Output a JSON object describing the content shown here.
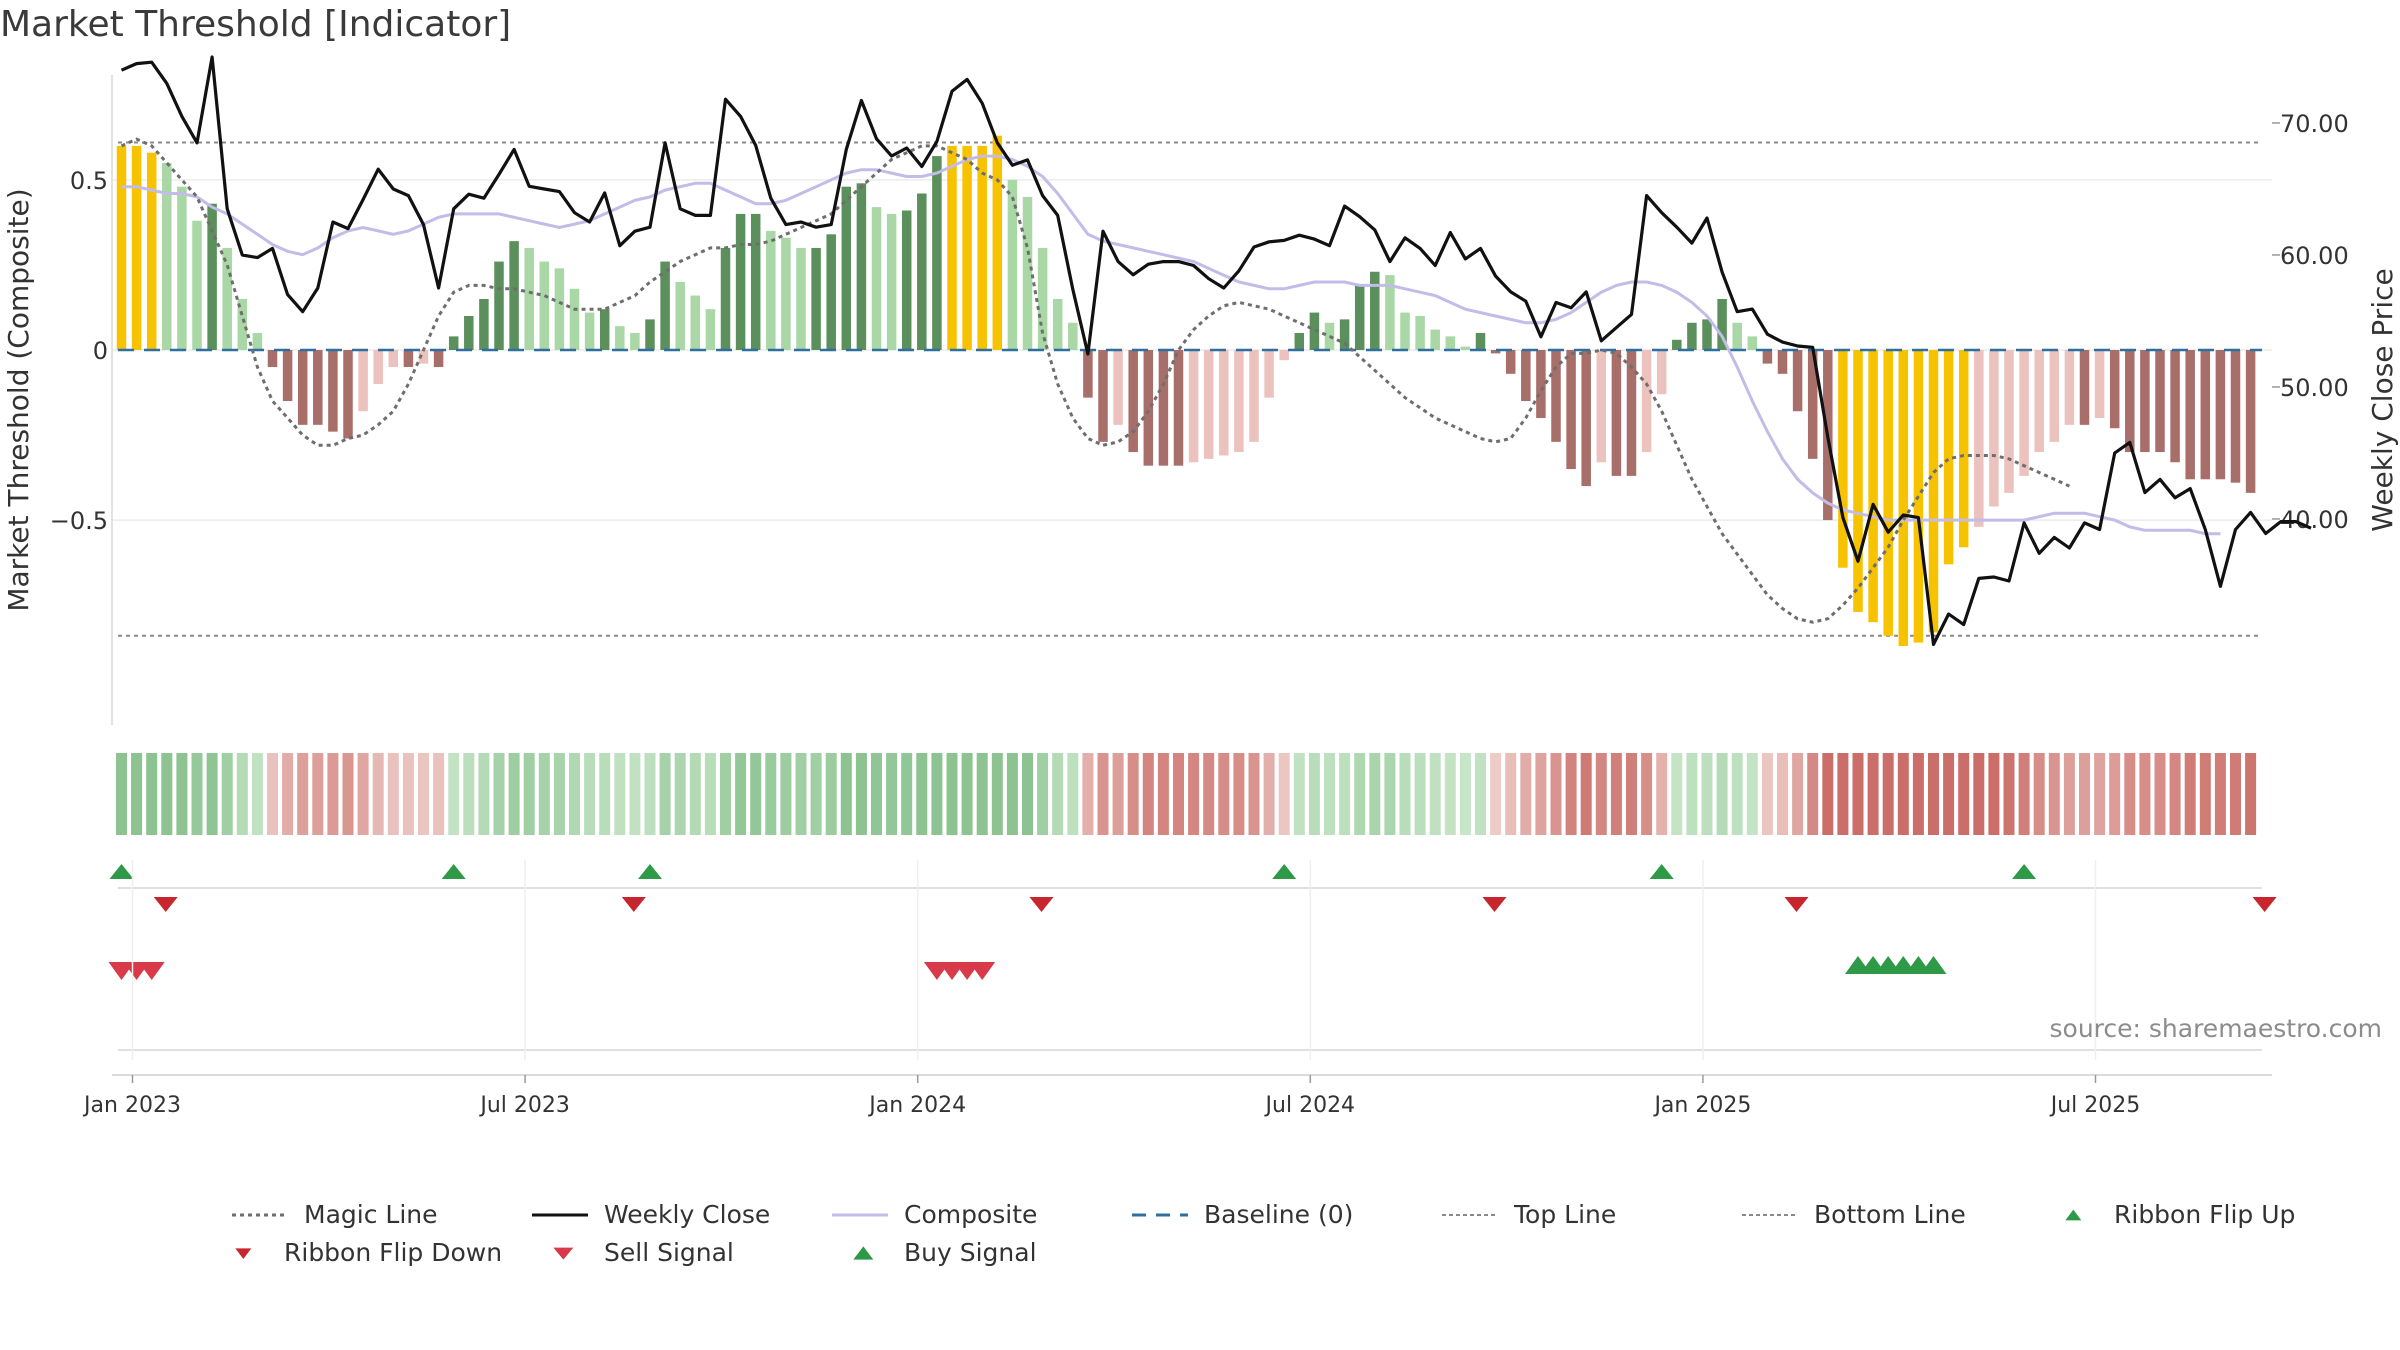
{
  "title": "Market Threshold [Indicator]",
  "source": "source: sharemaestro.com",
  "colors": {
    "gold": "#f7c200",
    "greenDark": "#5b8f5b",
    "greenLight": "#a9d7a5",
    "redDark": "#a86f6a",
    "redLight": "#ebc2bd",
    "weekly": "#111111",
    "composite": "#c3bbe8",
    "magic": "#6e6e6e",
    "baseline": "#2f6fa0",
    "buy": "#2e9a48",
    "sell": "#d83a4a",
    "flipDown": "#c8262e"
  },
  "chart_data": {
    "type": "bar+line",
    "ylabel_left": "Market Threshold (Composite)",
    "ylabel_right": "Weekly Close Price",
    "xlabels": [
      "Jan 2023",
      "Jul 2023",
      "Jan 2024",
      "Jul 2024",
      "Jan 2025",
      "Jul 2025"
    ],
    "xlabel_weeks": [
      0,
      26,
      52,
      78,
      104,
      130
    ],
    "ylim_left": [
      -0.97,
      0.97
    ],
    "yticks_left": [
      0.5,
      0,
      -0.5
    ],
    "yticklabels_left": [
      "0.5",
      "0",
      "−0.5"
    ],
    "ylim_right": [
      27.8,
      77.8
    ],
    "yticks_right": [
      70,
      60,
      50,
      40
    ],
    "yticklabels_right": [
      "70.00",
      "60.00",
      "50.00",
      "40.00"
    ],
    "top_line": 0.61,
    "bottom_line": -0.84,
    "composite_bars": [
      0.6,
      0.6,
      0.58,
      0.55,
      0.48,
      0.38,
      0.43,
      0.3,
      0.15,
      0.05,
      -0.05,
      -0.15,
      -0.22,
      -0.22,
      -0.24,
      -0.26,
      -0.18,
      -0.1,
      -0.05,
      -0.05,
      -0.04,
      -0.05,
      0.04,
      0.1,
      0.15,
      0.26,
      0.32,
      0.3,
      0.26,
      0.24,
      0.18,
      0.11,
      0.12,
      0.07,
      0.05,
      0.09,
      0.26,
      0.2,
      0.16,
      0.12,
      0.3,
      0.4,
      0.4,
      0.35,
      0.33,
      0.3,
      0.3,
      0.34,
      0.48,
      0.49,
      0.42,
      0.4,
      0.41,
      0.46,
      0.57,
      0.6,
      0.6,
      0.6,
      0.63,
      0.5,
      0.45,
      0.3,
      0.15,
      0.08,
      -0.14,
      -0.27,
      -0.22,
      -0.3,
      -0.34,
      -0.34,
      -0.34,
      -0.33,
      -0.32,
      -0.31,
      -0.3,
      -0.27,
      -0.14,
      -0.03,
      0.05,
      0.11,
      0.08,
      0.09,
      0.19,
      0.23,
      0.22,
      0.11,
      0.1,
      0.06,
      0.04,
      0.01,
      0.05,
      -0.01,
      -0.07,
      -0.15,
      -0.2,
      -0.27,
      -0.35,
      -0.4,
      -0.33,
      -0.37,
      -0.37,
      -0.3,
      -0.13,
      0.03,
      0.08,
      0.09,
      0.15,
      0.08,
      0.04,
      -0.04,
      -0.07,
      -0.18,
      -0.32,
      -0.5,
      -0.64,
      -0.77,
      -0.8,
      -0.84,
      -0.87,
      -0.86,
      -0.83,
      -0.63,
      -0.58,
      -0.52,
      -0.46,
      -0.42,
      -0.37,
      -0.3,
      -0.27,
      -0.22,
      -0.22,
      -0.2,
      -0.23,
      -0.3,
      -0.3,
      -0.3,
      -0.33,
      -0.38,
      -0.38,
      -0.38,
      -0.39,
      -0.42
    ],
    "magic_line": [
      0.6,
      0.62,
      0.6,
      0.55,
      0.5,
      0.45,
      0.35,
      0.25,
      0.1,
      -0.05,
      -0.15,
      -0.2,
      -0.25,
      -0.28,
      -0.28,
      -0.26,
      -0.25,
      -0.22,
      -0.18,
      -0.1,
      0,
      0.1,
      0.17,
      0.19,
      0.19,
      0.18,
      0.18,
      0.17,
      0.16,
      0.14,
      0.12,
      0.12,
      0.12,
      0.14,
      0.16,
      0.2,
      0.23,
      0.26,
      0.28,
      0.3,
      0.3,
      0.31,
      0.31,
      0.32,
      0.34,
      0.36,
      0.38,
      0.4,
      0.44,
      0.48,
      0.52,
      0.56,
      0.58,
      0.6,
      0.6,
      0.58,
      0.56,
      0.52,
      0.5,
      0.45,
      0.3,
      0.05,
      -0.1,
      -0.2,
      -0.26,
      -0.28,
      -0.27,
      -0.24,
      -0.18,
      -0.1,
      0,
      0.06,
      0.1,
      0.13,
      0.14,
      0.13,
      0.12,
      0.1,
      0.08,
      0.06,
      0.04,
      0.02,
      -0.02,
      -0.06,
      -0.1,
      -0.14,
      -0.17,
      -0.2,
      -0.22,
      -0.24,
      -0.26,
      -0.27,
      -0.26,
      -0.2,
      -0.12,
      -0.05,
      -0.01,
      -0.01,
      0,
      -0.01,
      -0.05,
      -0.1,
      -0.18,
      -0.28,
      -0.38,
      -0.46,
      -0.54,
      -0.6,
      -0.66,
      -0.72,
      -0.76,
      -0.79,
      -0.8,
      -0.79,
      -0.75,
      -0.7,
      -0.64,
      -0.58,
      -0.5,
      -0.43,
      -0.36,
      -0.32,
      -0.31,
      -0.31,
      -0.31,
      -0.32,
      -0.34,
      -0.36,
      -0.38,
      -0.4
    ],
    "weekly_close": [
      74,
      74.5,
      74.6,
      73,
      70.5,
      68.5,
      75,
      63.5,
      60,
      59.8,
      60.5,
      57,
      55.7,
      57.5,
      62.5,
      62,
      64.2,
      66.5,
      65,
      64.5,
      62.3,
      57.5,
      63.5,
      64.6,
      64.3,
      66.1,
      68,
      65.2,
      65,
      64.8,
      63.2,
      62.5,
      64.7,
      60.7,
      61.8,
      62.1,
      68.5,
      63.5,
      63,
      63,
      71.8,
      70.5,
      68.3,
      64.3,
      62.3,
      62.5,
      62.1,
      62.3,
      68,
      71.7,
      68.8,
      67.5,
      68.1,
      66.7,
      68.6,
      72.4,
      73.3,
      71.5,
      68.5,
      66.8,
      67.2,
      64.5,
      63,
      57.4,
      52.5,
      61.8,
      59.5,
      58.5,
      59.3,
      59.5,
      59.5,
      59.2,
      58.2,
      57.5,
      58.8,
      60.6,
      61,
      61.1,
      61.5,
      61.2,
      60.7,
      63.7,
      62.9,
      61.9,
      59.5,
      61.3,
      60.5,
      59.2,
      61.7,
      59.7,
      60.5,
      58.4,
      57.2,
      56.5,
      53.8,
      56.4,
      56,
      57.2,
      53.5,
      54.5,
      55.5,
      64.5,
      63.2,
      62.1,
      60.9,
      62.8,
      58.7,
      55.7,
      55.9,
      54,
      53.4,
      53.1,
      53,
      46.2,
      40.1,
      36.8,
      41.1,
      39,
      40.3,
      40.1,
      30.5,
      32.8,
      32,
      35.5,
      35.6,
      35.3,
      39.7,
      37.4,
      38.6,
      37.8,
      39.7,
      39.2,
      45,
      45.8,
      42,
      43,
      41.6,
      42.3,
      39.2,
      34.9,
      39.2,
      40.5,
      38.9,
      39.8,
      39.8,
      39.3
    ],
    "composite_line": [
      0.48,
      0.48,
      0.47,
      0.46,
      0.46,
      0.45,
      0.42,
      0.4,
      0.37,
      0.34,
      0.31,
      0.29,
      0.28,
      0.3,
      0.33,
      0.35,
      0.36,
      0.35,
      0.34,
      0.35,
      0.37,
      0.39,
      0.4,
      0.4,
      0.4,
      0.4,
      0.39,
      0.38,
      0.37,
      0.36,
      0.37,
      0.38,
      0.4,
      0.42,
      0.44,
      0.45,
      0.47,
      0.48,
      0.49,
      0.49,
      0.47,
      0.45,
      0.43,
      0.43,
      0.44,
      0.46,
      0.48,
      0.5,
      0.52,
      0.53,
      0.53,
      0.52,
      0.51,
      0.51,
      0.52,
      0.54,
      0.56,
      0.57,
      0.57,
      0.56,
      0.54,
      0.51,
      0.46,
      0.4,
      0.34,
      0.32,
      0.31,
      0.3,
      0.29,
      0.28,
      0.27,
      0.26,
      0.24,
      0.22,
      0.2,
      0.19,
      0.18,
      0.18,
      0.19,
      0.2,
      0.2,
      0.2,
      0.19,
      0.19,
      0.19,
      0.18,
      0.17,
      0.16,
      0.14,
      0.12,
      0.11,
      0.1,
      0.09,
      0.08,
      0.08,
      0.09,
      0.11,
      0.14,
      0.17,
      0.19,
      0.2,
      0.2,
      0.19,
      0.17,
      0.14,
      0.1,
      0.04,
      -0.05,
      -0.15,
      -0.24,
      -0.32,
      -0.38,
      -0.42,
      -0.45,
      -0.47,
      -0.48,
      -0.49,
      -0.5,
      -0.5,
      -0.5,
      -0.5,
      -0.5,
      -0.5,
      -0.5,
      -0.5,
      -0.5,
      -0.5,
      -0.49,
      -0.48,
      -0.48,
      -0.48,
      -0.49,
      -0.5,
      -0.52,
      -0.53,
      -0.53,
      -0.53,
      -0.53,
      -0.54,
      -0.54
    ],
    "ribbon_flip_up_weeks": [
      0,
      22,
      35,
      77,
      102,
      126
    ],
    "ribbon_flip_down_weeks": [
      2,
      33,
      60,
      90,
      110,
      141
    ],
    "sell_signal_weeks": [
      0,
      1,
      2,
      54,
      55,
      56,
      57
    ],
    "buy_signal_weeks": [
      115,
      116,
      117,
      118,
      119,
      120
    ],
    "legend": [
      "Magic Line",
      "Weekly Close",
      "Composite",
      "Baseline (0)",
      "Top Line",
      "Bottom Line",
      "Ribbon Flip Up",
      "Ribbon Flip Down",
      "Sell Signal",
      "Buy Signal"
    ]
  }
}
